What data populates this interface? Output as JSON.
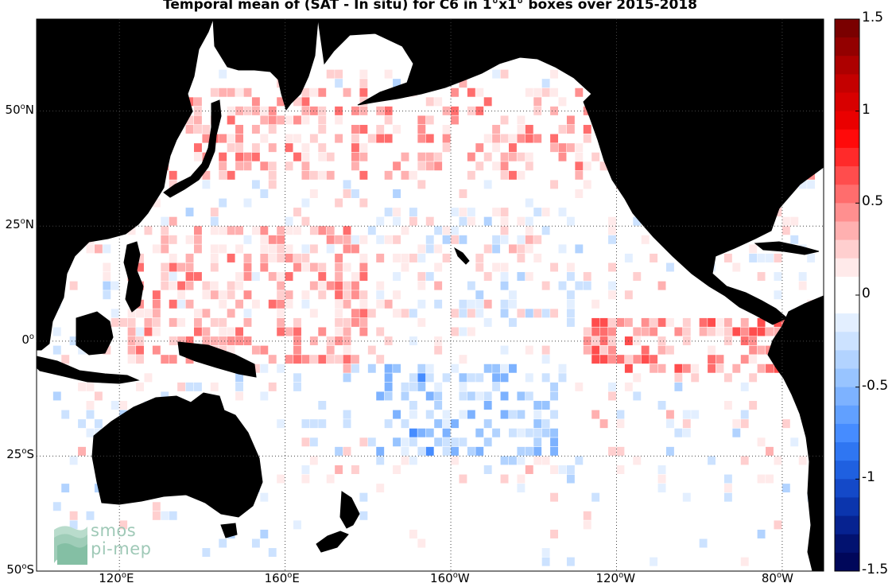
{
  "title": "Temporal mean of (SAT - In situ) for C6 in 1°x1° boxes over 2015-2018",
  "map": {
    "lon_range": [
      100,
      -70
    ],
    "lat_range": [
      -50,
      70
    ],
    "graticule_lons": [
      "120°E",
      "160°E",
      "160°W",
      "120°W",
      "80°W"
    ],
    "graticule_lats": [
      "50°N",
      "25°N",
      "0°",
      "25°S",
      "50°S"
    ],
    "land_color": "#6e6e6e",
    "ocean_color": "#ffffff"
  },
  "lat_labels": [
    {
      "deg": "50",
      "hemi": "N",
      "text": "50°N"
    },
    {
      "deg": "25",
      "hemi": "N",
      "text": "25°N"
    },
    {
      "deg": "0",
      "hemi": "",
      "text": "0°"
    },
    {
      "deg": "25",
      "hemi": "S",
      "text": "25°S"
    },
    {
      "deg": "50",
      "hemi": "S",
      "text": "50°S"
    }
  ],
  "lon_labels": [
    {
      "deg": "120",
      "hemi": "E",
      "text": "120°E"
    },
    {
      "deg": "160",
      "hemi": "E",
      "text": "160°E"
    },
    {
      "deg": "160",
      "hemi": "W",
      "text": "160°W"
    },
    {
      "deg": "120",
      "hemi": "W",
      "text": "120°W"
    },
    {
      "deg": "80",
      "hemi": "W",
      "text": "80°W"
    }
  ],
  "colorbar": {
    "min": -1.5,
    "max": 1.5,
    "ticks": [
      "1.5",
      "1",
      "0.5",
      "0",
      "-0.5",
      "-1",
      "-1.5"
    ],
    "colors_top_to_bottom": [
      "#7a0000",
      "#930000",
      "#ad0000",
      "#c40000",
      "#d80000",
      "#ea0000",
      "#ff0a0a",
      "#ff2a2a",
      "#ff4d4d",
      "#ff6d6d",
      "#ff8f8f",
      "#ffb0b0",
      "#ffcfcf",
      "#ffeaea",
      "#ffffff",
      "#ffffff",
      "#e3efff",
      "#cce2ff",
      "#b2d3ff",
      "#98c4ff",
      "#7db2ff",
      "#61a0ff",
      "#468cff",
      "#2f76f2",
      "#1f60e0",
      "#1449c8",
      "#0b35ad",
      "#062290",
      "#021270",
      "#00075a"
    ]
  },
  "logo": {
    "line1": "smos",
    "line2": "pi-mep"
  }
}
